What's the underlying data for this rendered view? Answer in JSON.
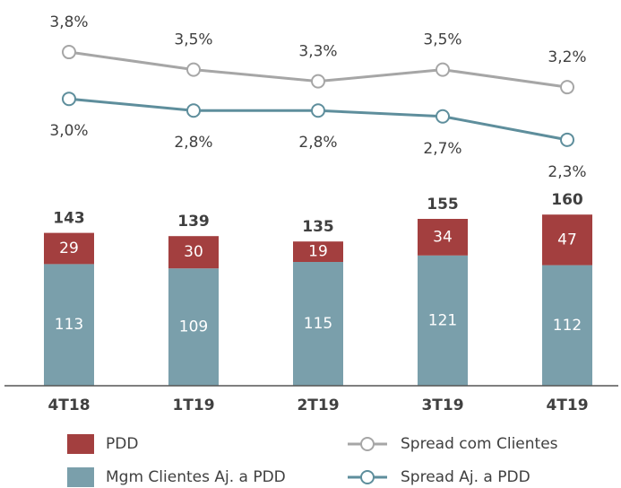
{
  "chart_data": {
    "type": "bar_line",
    "categories": [
      "4T18",
      "1T19",
      "2T19",
      "3T19",
      "4T19"
    ],
    "series": [
      {
        "name": "Mgm Clientes Aj. a PDD",
        "color": "#7a9fab",
        "values": [
          113,
          109,
          115,
          121,
          112
        ]
      },
      {
        "name": "PDD",
        "color": "#a33f3f",
        "values": [
          29,
          30,
          19,
          34,
          47
        ]
      }
    ],
    "totals": [
      143,
      139,
      135,
      155,
      160
    ],
    "ylim": [
      0,
      160
    ],
    "lines": [
      {
        "name": "Spread com Clientes",
        "color": "#a6a6a6",
        "axis": "y2",
        "values": [
          3.8,
          3.5,
          3.3,
          3.5,
          3.2
        ],
        "value_labels": [
          "3,8%",
          "3,5%",
          "3,3%",
          "3,5%",
          "3,2%"
        ]
      },
      {
        "name": "Spread Aj. a PDD",
        "color": "#5e8e9c",
        "axis": "y2",
        "values": [
          3.0,
          2.8,
          2.8,
          2.7,
          2.3
        ],
        "value_labels": [
          "3,0%",
          "2,8%",
          "2,8%",
          "2,7%",
          "2,3%"
        ]
      }
    ],
    "y2lim": [
      1.5,
      4.0
    ]
  }
}
